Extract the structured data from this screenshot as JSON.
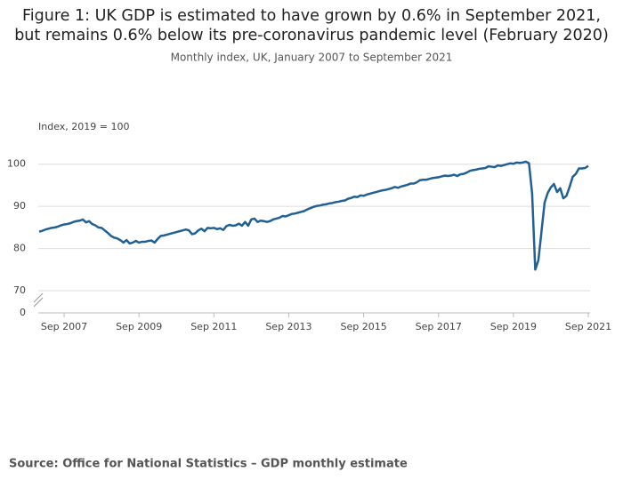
{
  "chart_data": {
    "type": "line",
    "title": [
      "Figure 1: UK GDP is estimated to have grown by 0.6% in September 2021,",
      "but remains 0.6% below its pre-coronavirus pandemic level (February 2020)"
    ],
    "subtitle": "Monthly index, UK, January 2007 to September 2021",
    "y_label": "Index, 2019 = 100",
    "source": "Source: Office for National Statistics – GDP monthly estimate",
    "x": [
      "Jan 2007",
      "Feb 2007",
      "Mar 2007",
      "Apr 2007",
      "May 2007",
      "Jun 2007",
      "Jul 2007",
      "Aug 2007",
      "Sep 2007",
      "Oct 2007",
      "Nov 2007",
      "Dec 2007",
      "Jan 2008",
      "Feb 2008",
      "Mar 2008",
      "Apr 2008",
      "May 2008",
      "Jun 2008",
      "Jul 2008",
      "Aug 2008",
      "Sep 2008",
      "Oct 2008",
      "Nov 2008",
      "Dec 2008",
      "Jan 2009",
      "Feb 2009",
      "Mar 2009",
      "Apr 2009",
      "May 2009",
      "Jun 2009",
      "Jul 2009",
      "Aug 2009",
      "Sep 2009",
      "Oct 2009",
      "Nov 2009",
      "Dec 2009",
      "Jan 2010",
      "Feb 2010",
      "Mar 2010",
      "Apr 2010",
      "May 2010",
      "Jun 2010",
      "Jul 2010",
      "Aug 2010",
      "Sep 2010",
      "Oct 2010",
      "Nov 2010",
      "Dec 2010",
      "Jan 2011",
      "Feb 2011",
      "Mar 2011",
      "Apr 2011",
      "May 2011",
      "Jun 2011",
      "Jul 2011",
      "Aug 2011",
      "Sep 2011",
      "Oct 2011",
      "Nov 2011",
      "Dec 2011",
      "Jan 2012",
      "Feb 2012",
      "Mar 2012",
      "Apr 2012",
      "May 2012",
      "Jun 2012",
      "Jul 2012",
      "Aug 2012",
      "Sep 2012",
      "Oct 2012",
      "Nov 2012",
      "Dec 2012",
      "Jan 2013",
      "Feb 2013",
      "Mar 2013",
      "Apr 2013",
      "May 2013",
      "Jun 2013",
      "Jul 2013",
      "Aug 2013",
      "Sep 2013",
      "Oct 2013",
      "Nov 2013",
      "Dec 2013",
      "Jan 2014",
      "Feb 2014",
      "Mar 2014",
      "Apr 2014",
      "May 2014",
      "Jun 2014",
      "Jul 2014",
      "Aug 2014",
      "Sep 2014",
      "Oct 2014",
      "Nov 2014",
      "Dec 2014",
      "Jan 2015",
      "Feb 2015",
      "Mar 2015",
      "Apr 2015",
      "May 2015",
      "Jun 2015",
      "Jul 2015",
      "Aug 2015",
      "Sep 2015",
      "Oct 2015",
      "Nov 2015",
      "Dec 2015",
      "Jan 2016",
      "Feb 2016",
      "Mar 2016",
      "Apr 2016",
      "May 2016",
      "Jun 2016",
      "Jul 2016",
      "Aug 2016",
      "Sep 2016",
      "Oct 2016",
      "Nov 2016",
      "Dec 2016",
      "Jan 2017",
      "Feb 2017",
      "Mar 2017",
      "Apr 2017",
      "May 2017",
      "Jun 2017",
      "Jul 2017",
      "Aug 2017",
      "Sep 2017",
      "Oct 2017",
      "Nov 2017",
      "Dec 2017",
      "Jan 2018",
      "Feb 2018",
      "Mar 2018",
      "Apr 2018",
      "May 2018",
      "Jun 2018",
      "Jul 2018",
      "Aug 2018",
      "Sep 2018",
      "Oct 2018",
      "Nov 2018",
      "Dec 2018",
      "Jan 2019",
      "Feb 2019",
      "Mar 2019",
      "Apr 2019",
      "May 2019",
      "Jun 2019",
      "Jul 2019",
      "Aug 2019",
      "Sep 2019",
      "Oct 2019",
      "Nov 2019",
      "Dec 2019",
      "Jan 2020",
      "Feb 2020",
      "Mar 2020",
      "Apr 2020",
      "May 2020",
      "Jun 2020",
      "Jul 2020",
      "Aug 2020",
      "Sep 2020",
      "Oct 2020",
      "Nov 2020",
      "Dec 2020",
      "Jan 2021",
      "Feb 2021",
      "Mar 2021",
      "Apr 2021",
      "May 2021",
      "Jun 2021",
      "Jul 2021",
      "Aug 2021",
      "Sep 2021"
    ],
    "series": [
      {
        "name": "GDP",
        "color": "#206095",
        "values": [
          84.0,
          84.2,
          84.5,
          84.7,
          84.9,
          85.0,
          85.2,
          85.5,
          85.7,
          85.8,
          86.0,
          86.3,
          86.5,
          86.6,
          86.9,
          86.2,
          86.5,
          85.8,
          85.5,
          85.0,
          84.9,
          84.3,
          83.7,
          83.0,
          82.6,
          82.4,
          82.0,
          81.4,
          82.0,
          81.2,
          81.4,
          81.8,
          81.4,
          81.6,
          81.6,
          81.8,
          81.9,
          81.4,
          82.3,
          83.0,
          83.1,
          83.3,
          83.5,
          83.7,
          83.9,
          84.1,
          84.3,
          84.5,
          84.3,
          83.4,
          83.6,
          84.3,
          84.7,
          84.1,
          84.9,
          84.8,
          84.9,
          84.6,
          84.8,
          84.4,
          85.3,
          85.6,
          85.4,
          85.5,
          85.9,
          85.4,
          86.3,
          85.4,
          86.9,
          87.1,
          86.3,
          86.6,
          86.5,
          86.3,
          86.5,
          86.9,
          87.1,
          87.3,
          87.7,
          87.6,
          87.9,
          88.2,
          88.3,
          88.5,
          88.7,
          88.9,
          89.3,
          89.6,
          89.9,
          90.1,
          90.2,
          90.4,
          90.5,
          90.7,
          90.8,
          91.0,
          91.1,
          91.3,
          91.4,
          91.8,
          92.0,
          92.3,
          92.2,
          92.6,
          92.5,
          92.8,
          93.0,
          93.2,
          93.4,
          93.6,
          93.8,
          93.9,
          94.1,
          94.3,
          94.6,
          94.4,
          94.7,
          94.9,
          95.1,
          95.4,
          95.4,
          95.7,
          96.2,
          96.3,
          96.3,
          96.5,
          96.7,
          96.8,
          96.9,
          97.1,
          97.3,
          97.2,
          97.3,
          97.5,
          97.2,
          97.6,
          97.7,
          98.0,
          98.4,
          98.6,
          98.7,
          98.9,
          99.0,
          99.1,
          99.5,
          99.4,
          99.3,
          99.7,
          99.6,
          99.8,
          100.0,
          100.2,
          100.1,
          100.4,
          100.3,
          100.4,
          100.6,
          100.2,
          93.0,
          75.0,
          77.2,
          84.0,
          90.9,
          93.2,
          94.5,
          95.3,
          93.4,
          94.3,
          91.9,
          92.5,
          94.6,
          97.0,
          97.7,
          99.0,
          99.0,
          99.1,
          99.6
        ]
      }
    ],
    "ylim": [
      0,
      105
    ],
    "yticks": [
      0,
      70,
      80,
      90,
      100
    ],
    "axis_break": true,
    "xticks": [
      "Sep 2007",
      "Sep 2009",
      "Sep 2011",
      "Sep 2013",
      "Sep 2015",
      "Sep 2017",
      "Sep 2019",
      "Sep 2021"
    ],
    "grid": true
  }
}
